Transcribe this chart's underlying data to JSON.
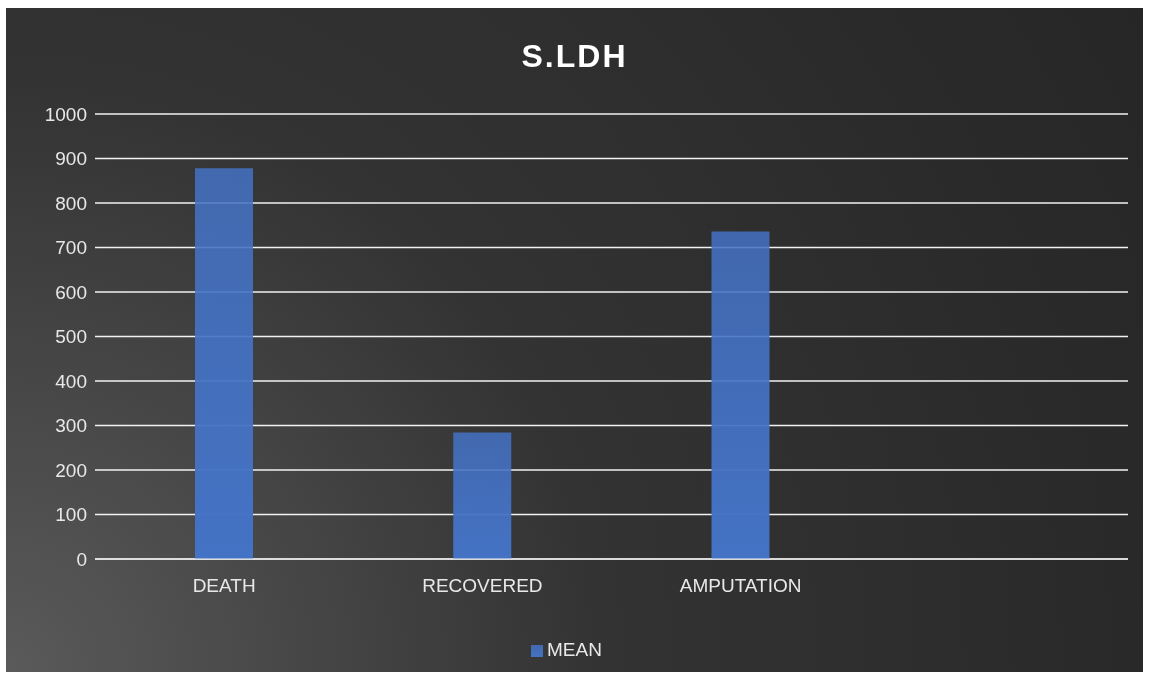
{
  "chart_data": {
    "type": "bar",
    "title": "S.LDH",
    "categories": [
      "DEATH",
      "RECOVERED",
      "AMPUTATION",
      null
    ],
    "series": [
      {
        "name": "MEAN",
        "color": "#4472c4",
        "values": [
          878,
          284,
          736,
          null
        ]
      }
    ],
    "ylim": [
      0,
      1000
    ],
    "yticks": [
      0,
      100,
      200,
      300,
      400,
      500,
      600,
      700,
      800,
      900,
      1000
    ],
    "grid": "y",
    "legend": "bottom"
  }
}
